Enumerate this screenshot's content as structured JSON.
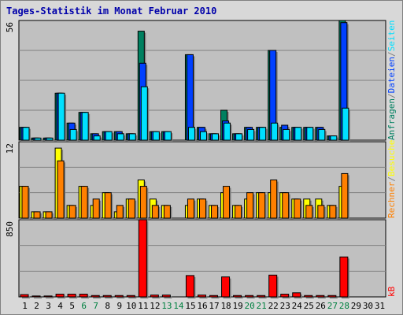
{
  "title": "Tages-Statistik im Monat Februar 2010",
  "colors": {
    "anfragen": "#008060",
    "dateien": "#0040ff",
    "seiten": "#00e0ff",
    "besuche": "#ffff00",
    "rechner": "#ff8000",
    "kb": "#ff0000",
    "weekend": "#008040",
    "plot_bg": "#c0c0c0",
    "grid": "#808080"
  },
  "chart_data": [
    {
      "type": "bar",
      "title": "Tages-Statistik im Monat Februar 2010",
      "ymax_label": "56",
      "ylim": [
        0,
        56
      ],
      "grid": true,
      "legend": [
        "Anfragen",
        "/",
        "Dateien",
        "/",
        "Seiten"
      ],
      "categories": [
        "1",
        "2",
        "3",
        "4",
        "5",
        "6",
        "7",
        "8",
        "9",
        "10",
        "11",
        "12",
        "13",
        "14",
        "15",
        "16",
        "17",
        "18",
        "19",
        "20",
        "21",
        "22",
        "23",
        "24",
        "25",
        "26",
        "27",
        "28",
        "29",
        "30",
        "31"
      ],
      "weekend_days": [
        "6",
        "7",
        "13",
        "14",
        "20",
        "21",
        "27",
        "28"
      ],
      "series": [
        {
          "name": "Anfragen",
          "values": [
            6,
            1,
            1,
            22,
            8,
            13,
            3,
            4,
            4,
            3,
            51,
            4,
            4,
            0,
            40,
            6,
            3,
            14,
            3,
            6,
            6,
            42,
            6,
            6,
            6,
            6,
            2,
            56,
            0,
            0,
            0
          ]
        },
        {
          "name": "Dateien",
          "values": [
            6,
            1,
            1,
            22,
            8,
            13,
            3,
            4,
            4,
            3,
            36,
            4,
            4,
            0,
            40,
            6,
            3,
            9,
            3,
            6,
            6,
            42,
            7,
            6,
            6,
            6,
            2,
            55,
            0,
            0,
            0
          ]
        },
        {
          "name": "Seiten",
          "values": [
            6,
            1,
            1,
            22,
            5,
            13,
            2,
            4,
            3,
            3,
            25,
            4,
            4,
            0,
            6,
            4,
            3,
            8,
            3,
            5,
            6,
            8,
            5,
            6,
            6,
            5,
            2,
            15,
            0,
            0,
            0
          ]
        }
      ]
    },
    {
      "type": "bar",
      "ymax_label": "12",
      "ylim": [
        0,
        12
      ],
      "grid": true,
      "legend": [
        "Rechner",
        "/",
        "Besuche"
      ],
      "categories": [
        "1",
        "2",
        "3",
        "4",
        "5",
        "6",
        "7",
        "8",
        "9",
        "10",
        "11",
        "12",
        "13",
        "14",
        "15",
        "16",
        "17",
        "18",
        "19",
        "20",
        "21",
        "22",
        "23",
        "24",
        "25",
        "26",
        "27",
        "28",
        "29",
        "30",
        "31"
      ],
      "series": [
        {
          "name": "Besuche",
          "values": [
            5,
            1,
            1,
            11,
            2,
            5,
            2,
            4,
            1,
            3,
            6,
            3,
            2,
            0,
            2,
            3,
            2,
            4,
            2,
            3,
            4,
            4,
            4,
            3,
            3,
            3,
            2,
            5,
            0,
            0,
            0
          ]
        },
        {
          "name": "Rechner",
          "values": [
            5,
            1,
            1,
            9,
            2,
            5,
            3,
            4,
            2,
            3,
            5,
            2,
            2,
            0,
            3,
            3,
            2,
            5,
            2,
            4,
            4,
            6,
            4,
            3,
            2,
            2,
            2,
            7,
            0,
            0,
            0
          ]
        }
      ]
    },
    {
      "type": "bar",
      "ymax_label": "850",
      "ylim": [
        0,
        850
      ],
      "grid": true,
      "legend": [
        "kB"
      ],
      "categories": [
        "1",
        "2",
        "3",
        "4",
        "5",
        "6",
        "7",
        "8",
        "9",
        "10",
        "11",
        "12",
        "13",
        "14",
        "15",
        "16",
        "17",
        "18",
        "19",
        "20",
        "21",
        "22",
        "23",
        "24",
        "25",
        "26",
        "27",
        "28",
        "29",
        "30",
        "31"
      ],
      "series": [
        {
          "name": "kB",
          "values": [
            25,
            10,
            10,
            30,
            30,
            30,
            15,
            15,
            15,
            15,
            850,
            20,
            20,
            0,
            235,
            20,
            15,
            220,
            15,
            15,
            15,
            240,
            30,
            45,
            15,
            15,
            15,
            440,
            0,
            0,
            0
          ]
        }
      ]
    }
  ]
}
